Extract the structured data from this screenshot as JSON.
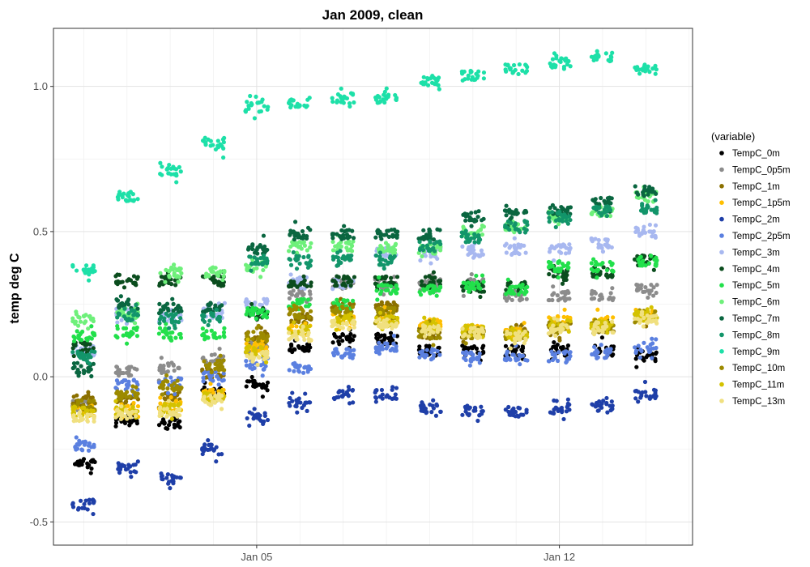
{
  "chart_data": {
    "type": "scatter",
    "title": "Jan 2009, clean",
    "xlabel": "",
    "ylabel": "temp deg C",
    "x_tick_labels": [
      {
        "label": "Jan 05",
        "value": 5
      },
      {
        "label": "Jan 12",
        "value": 12
      }
    ],
    "xlim": [
      0.3,
      15.08
    ],
    "ylim": [
      -0.58,
      1.2
    ],
    "y_ticks": [
      -0.5,
      0.0,
      0.5,
      1.0
    ],
    "y_tick_labels": [
      "-0.5",
      "0.0",
      "0.5",
      "1.0"
    ],
    "grid": true,
    "legend": {
      "title": "(variable)",
      "placement": "right"
    },
    "cluster_days": [
      1,
      2,
      3,
      4,
      5,
      6,
      7,
      8,
      9,
      10,
      11,
      12,
      13,
      14
    ],
    "series": [
      {
        "name": "TempC_0m",
        "color": "#000000",
        "values": [
          -0.3,
          -0.15,
          -0.16,
          -0.05,
          -0.03,
          0.1,
          0.13,
          0.13,
          0.09,
          0.09,
          0.09,
          0.09,
          0.09,
          0.07
        ]
      },
      {
        "name": "TempC_0p5m",
        "color": "#8c8c8c",
        "values": [
          -0.1,
          0.02,
          0.03,
          0.06,
          0.1,
          0.28,
          0.32,
          0.32,
          0.32,
          0.32,
          0.28,
          0.28,
          0.28,
          0.3
        ]
      },
      {
        "name": "TempC_1m",
        "color": "#8b7000",
        "values": [
          -0.08,
          -0.08,
          -0.07,
          0.01,
          0.14,
          0.2,
          0.24,
          0.24,
          0.15,
          0.15,
          0.15,
          0.17,
          0.17,
          0.21
        ]
      },
      {
        "name": "TempC_1p5m",
        "color": "#ffbf00",
        "values": [
          -0.12,
          -0.11,
          -0.1,
          -0.06,
          0.1,
          0.16,
          0.2,
          0.2,
          0.18,
          0.16,
          0.15,
          0.19,
          0.19,
          0.21
        ]
      },
      {
        "name": "TempC_2m",
        "color": "#1f3fa8",
        "values": [
          -0.44,
          -0.32,
          -0.35,
          -0.25,
          -0.14,
          -0.09,
          -0.06,
          -0.06,
          -0.11,
          -0.12,
          -0.12,
          -0.11,
          -0.1,
          -0.06
        ]
      },
      {
        "name": "TempC_2p5m",
        "color": "#5b80e0",
        "values": [
          -0.24,
          -0.03,
          -0.02,
          0.0,
          0.04,
          0.03,
          0.08,
          0.1,
          0.08,
          0.07,
          0.07,
          0.07,
          0.08,
          0.1
        ]
      },
      {
        "name": "TempC_3m",
        "color": "#a8b8f0",
        "values": [
          0.09,
          0.22,
          0.2,
          0.22,
          0.25,
          0.33,
          0.32,
          0.43,
          0.43,
          0.43,
          0.44,
          0.44,
          0.46,
          0.5
        ]
      },
      {
        "name": "TempC_4m",
        "color": "#0b4d1e",
        "values": [
          0.1,
          0.33,
          0.33,
          0.33,
          0.22,
          0.32,
          0.33,
          0.33,
          0.33,
          0.31,
          0.31,
          0.35,
          0.36,
          0.4
        ]
      },
      {
        "name": "TempC_5m",
        "color": "#22e04b",
        "values": [
          0.14,
          0.15,
          0.15,
          0.15,
          0.22,
          0.25,
          0.25,
          0.3,
          0.3,
          0.31,
          0.3,
          0.38,
          0.38,
          0.4
        ]
      },
      {
        "name": "TempC_6m",
        "color": "#6ef07a",
        "values": [
          0.2,
          0.22,
          0.36,
          0.36,
          0.38,
          0.45,
          0.45,
          0.44,
          0.44,
          0.5,
          0.52,
          0.55,
          0.57,
          0.62
        ]
      },
      {
        "name": "TempC_7m",
        "color": "#0a6640",
        "values": [
          0.03,
          0.25,
          0.24,
          0.24,
          0.44,
          0.49,
          0.49,
          0.49,
          0.49,
          0.55,
          0.56,
          0.57,
          0.6,
          0.64
        ]
      },
      {
        "name": "TempC_8m",
        "color": "#12956a",
        "values": [
          0.07,
          0.21,
          0.2,
          0.2,
          0.4,
          0.4,
          0.4,
          0.4,
          0.45,
          0.48,
          0.52,
          0.55,
          0.57,
          0.58
        ]
      },
      {
        "name": "TempC_9m",
        "color": "#1de0a8",
        "values": [
          0.37,
          0.62,
          0.71,
          0.8,
          0.93,
          0.94,
          0.96,
          0.96,
          1.02,
          1.04,
          1.06,
          1.08,
          1.1,
          1.06
        ]
      },
      {
        "name": "TempC_10m",
        "color": "#9c8a00",
        "values": [
          -0.1,
          -0.06,
          -0.03,
          0.04,
          0.14,
          0.22,
          0.22,
          0.22,
          0.15,
          0.15,
          0.14,
          0.17,
          0.17,
          0.21
        ]
      },
      {
        "name": "TempC_11m",
        "color": "#d4c200",
        "values": [
          -0.12,
          -0.12,
          -0.11,
          -0.07,
          0.09,
          0.16,
          0.2,
          0.19,
          0.17,
          0.16,
          0.15,
          0.18,
          0.18,
          0.21
        ]
      },
      {
        "name": "TempC_13m",
        "color": "#f0e080",
        "values": [
          -0.14,
          -0.13,
          -0.12,
          -0.08,
          0.07,
          0.14,
          0.18,
          0.18,
          0.16,
          0.15,
          0.14,
          0.17,
          0.17,
          0.2
        ]
      }
    ]
  }
}
